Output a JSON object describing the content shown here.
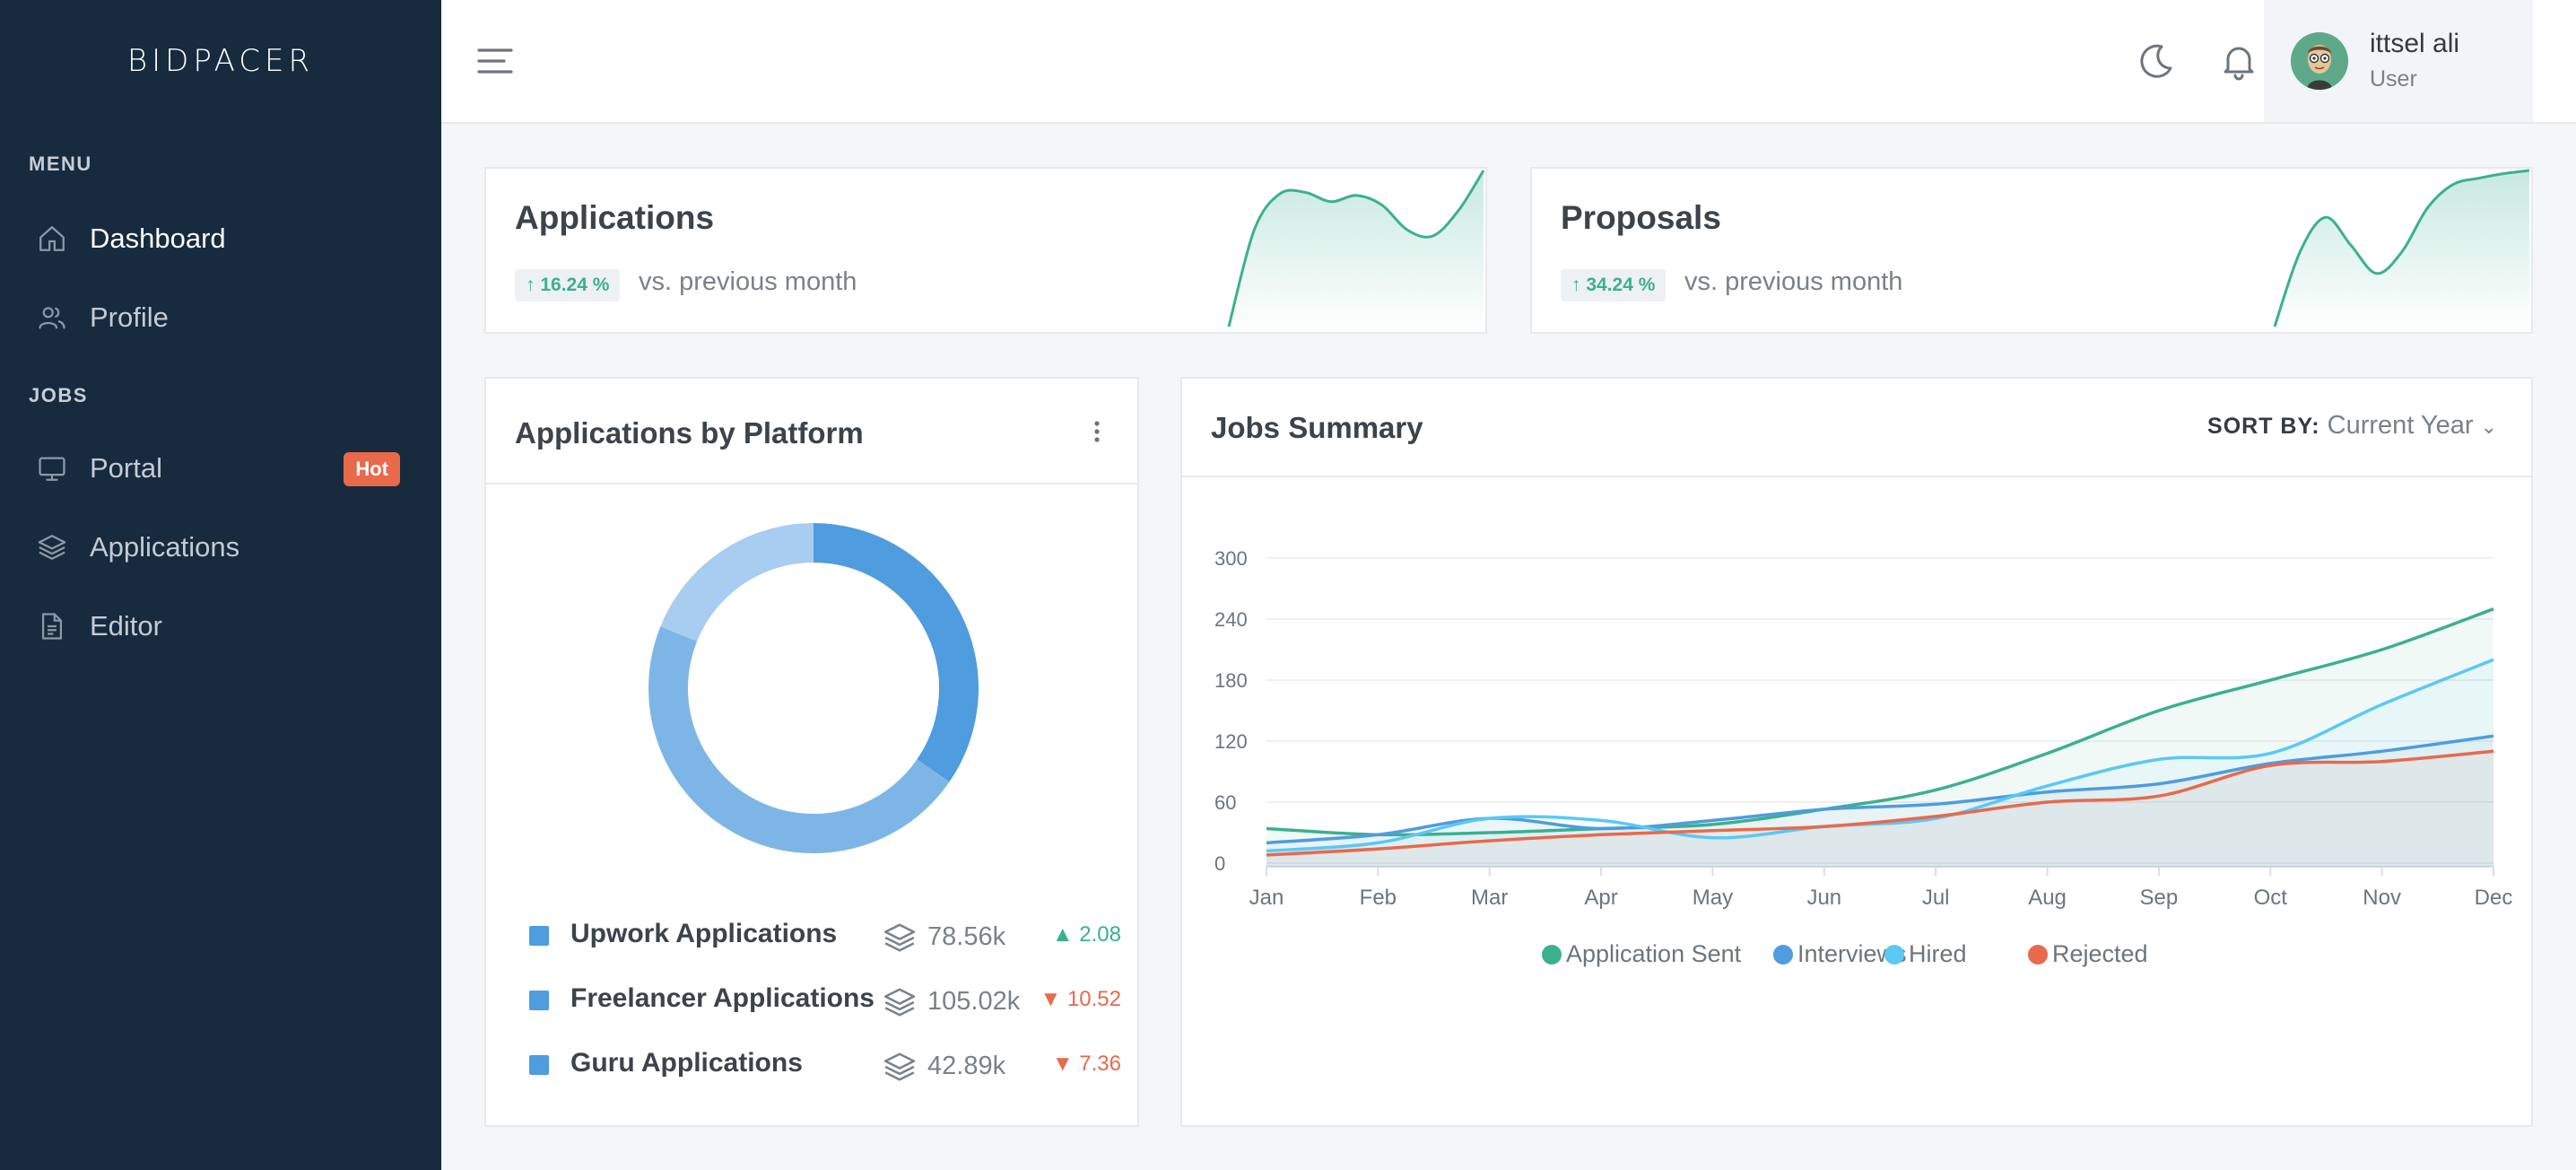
{
  "brand": "BIDPACER",
  "sidebar": {
    "sections": [
      {
        "title": "MENU"
      },
      {
        "title": "JOBS"
      }
    ],
    "items": [
      {
        "label": "Dashboard",
        "icon": "home-icon"
      },
      {
        "label": "Profile",
        "icon": "users-icon"
      },
      {
        "label": "Portal",
        "icon": "monitor-icon",
        "badge": "Hot"
      },
      {
        "label": "Applications",
        "icon": "layers-icon"
      },
      {
        "label": "Editor",
        "icon": "document-icon"
      }
    ]
  },
  "header": {
    "user": {
      "name": "ittsel ali",
      "role": "User"
    }
  },
  "stats": [
    {
      "title": "Applications",
      "change": "16.24 %",
      "caption": "vs. previous month"
    },
    {
      "title": "Proposals",
      "change": "34.24 %",
      "caption": "vs. previous month"
    }
  ],
  "platform": {
    "title": "Applications by Platform",
    "rows": [
      {
        "label": "Upwork Applications",
        "value": "78.56k",
        "change": "2.08",
        "dir": "up"
      },
      {
        "label": "Freelancer Applications",
        "value": "105.02k",
        "change": "10.52",
        "dir": "down"
      },
      {
        "label": "Guru Applications",
        "value": "42.89k",
        "change": "7.36",
        "dir": "down"
      }
    ]
  },
  "jobs": {
    "title": "Jobs Summary",
    "sort_label": "SORT BY:",
    "sort_value": "Current Year"
  },
  "colors": {
    "sidebar": "#172a3e",
    "green": "#3bb08f",
    "blue": "#4f9cdf",
    "lightblue": "#5bc8f5",
    "red": "#e9694b"
  },
  "chart_data": [
    {
      "type": "pie",
      "title": "Applications by Platform",
      "categories": [
        "Upwork Applications",
        "Freelancer Applications",
        "Guru Applications"
      ],
      "values": [
        34.6,
        46.5,
        18.9
      ],
      "colors": [
        "#4f9cdf",
        "#7db6e6",
        "#a8cdf0"
      ]
    },
    {
      "type": "line",
      "title": "Applications sparkline",
      "values": [
        0,
        62,
        85,
        86,
        80,
        84,
        78,
        62,
        58,
        74,
        100
      ]
    },
    {
      "type": "line",
      "title": "Proposals sparkline",
      "values": [
        0,
        48,
        70,
        52,
        34,
        48,
        76,
        91,
        95,
        98,
        100
      ]
    },
    {
      "type": "area",
      "title": "Jobs Summary",
      "categories": [
        "Jan",
        "Feb",
        "Mar",
        "Apr",
        "May",
        "Jun",
        "Jul",
        "Aug",
        "Sep",
        "Oct",
        "Nov",
        "Dec"
      ],
      "ylim": [
        0,
        300
      ],
      "yticks": [
        0,
        60,
        120,
        180,
        240,
        300
      ],
      "series": [
        {
          "name": "Application Sent",
          "color": "#3bb08f",
          "values": [
            34,
            28,
            30,
            34,
            38,
            53,
            72,
            108,
            150,
            180,
            210,
            250
          ]
        },
        {
          "name": "Interviews",
          "color": "#4f9cdf",
          "values": [
            20,
            28,
            44,
            34,
            42,
            53,
            58,
            70,
            78,
            98,
            110,
            125
          ]
        },
        {
          "name": "Hired",
          "color": "#5bc8f5",
          "values": [
            12,
            20,
            44,
            42,
            25,
            36,
            44,
            76,
            102,
            108,
            156,
            200
          ]
        },
        {
          "name": "Rejected",
          "color": "#e9694b",
          "values": [
            8,
            14,
            22,
            28,
            32,
            36,
            46,
            60,
            66,
            96,
            100,
            110
          ]
        }
      ]
    }
  ]
}
